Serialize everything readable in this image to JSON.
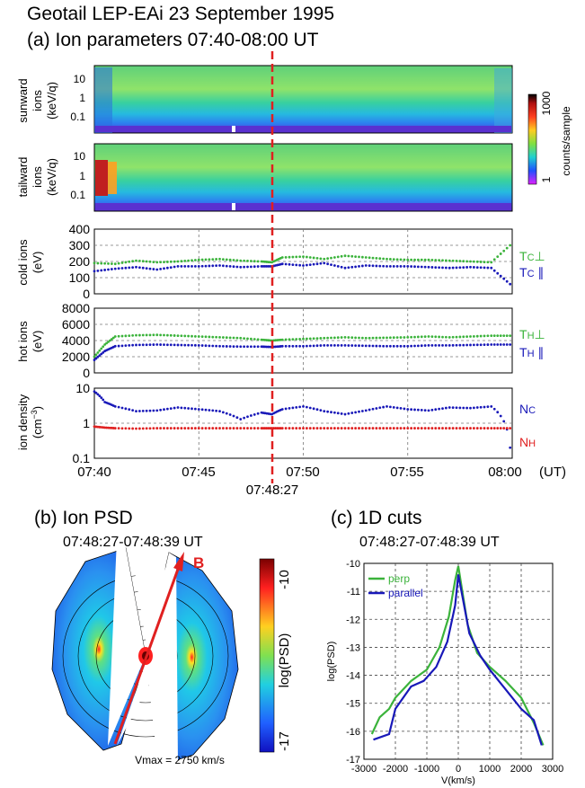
{
  "header": {
    "title": "Geotail LEP-EAi   23 September 1995",
    "panel_a_title": "(a) Ion parameters  07:40-08:00 UT"
  },
  "panel_a": {
    "spec_sun_label": [
      "sunward",
      "ions",
      "(keV/q)"
    ],
    "spec_tail_label": [
      "tailward",
      "ions",
      "(keV/q)"
    ],
    "colorbar_label": "counts/sample",
    "colorbar_ticks": [
      "1000",
      "1"
    ],
    "energy_ticks": [
      "10",
      "1",
      "0.1"
    ],
    "event_time": "07:48:27",
    "time_ticks": [
      "07:40",
      "07:45",
      "07:50",
      "07:55",
      "08:00"
    ],
    "time_unit": "(UT)"
  },
  "colors": {
    "perp": "#3bb33b",
    "parallel": "#1818b8",
    "nh": "#e02020",
    "event_line": "#e02020"
  },
  "panel_b": {
    "title": "(b) Ion PSD",
    "time": "07:48:27-07:48:39 UT",
    "b_label": "B",
    "colorbar_label": "log(PSD)",
    "colorbar_ticks": [
      "-10",
      "-17"
    ],
    "vmax": "Vmax = 2750 km/s"
  },
  "panel_c": {
    "title": "(c) 1D cuts",
    "time": "07:48:27-07:48:39 UT"
  },
  "chart_data": [
    {
      "type": "scatter",
      "id": "cold",
      "ylabel": "cold ions (eV)",
      "xlim": [
        0,
        20
      ],
      "ylim": [
        0,
        400
      ],
      "yticks": [
        0,
        100,
        200,
        300,
        400
      ],
      "series": [
        {
          "name": "TC⊥",
          "x": [
            0,
            1,
            2,
            3,
            4,
            5,
            6,
            7,
            8,
            8.5,
            9,
            10,
            11,
            12,
            13,
            14,
            15,
            16,
            17,
            18,
            19,
            19.9
          ],
          "values": [
            190,
            185,
            205,
            195,
            200,
            210,
            215,
            205,
            200,
            195,
            225,
            230,
            215,
            235,
            225,
            215,
            210,
            210,
            205,
            200,
            195,
            300
          ]
        },
        {
          "name": "TC ∥",
          "x": [
            0,
            1,
            2,
            3,
            4,
            5,
            6,
            7,
            8,
            8.5,
            9,
            10,
            11,
            12,
            13,
            14,
            15,
            16,
            17,
            18,
            19,
            19.9
          ],
          "values": [
            140,
            155,
            165,
            150,
            170,
            170,
            175,
            165,
            170,
            170,
            185,
            175,
            190,
            160,
            175,
            170,
            170,
            165,
            160,
            165,
            160,
            60
          ]
        }
      ]
    },
    {
      "type": "scatter",
      "id": "hot",
      "ylabel": "hot ions (eV)",
      "xlim": [
        0,
        20
      ],
      "ylim": [
        0,
        8000
      ],
      "yticks": [
        0,
        2000,
        4000,
        6000,
        8000
      ],
      "series": [
        {
          "name": "TH⊥",
          "x": [
            0,
            0.5,
            1,
            2,
            3,
            4,
            5,
            6,
            7,
            8,
            8.5,
            9,
            10,
            11,
            12,
            13,
            14,
            15,
            16,
            17,
            18,
            19,
            19.9
          ],
          "values": [
            2000,
            3500,
            4500,
            4650,
            4700,
            4600,
            4500,
            4400,
            4300,
            4100,
            4000,
            4100,
            4200,
            4300,
            4400,
            4300,
            4350,
            4400,
            4500,
            4400,
            4500,
            4600,
            4600
          ]
        },
        {
          "name": "TH ∥",
          "x": [
            0,
            0.5,
            1,
            2,
            3,
            4,
            5,
            6,
            7,
            8,
            8.5,
            9,
            10,
            11,
            12,
            13,
            14,
            15,
            16,
            17,
            18,
            19,
            19.9
          ],
          "values": [
            1600,
            2700,
            3300,
            3450,
            3500,
            3450,
            3400,
            3300,
            3250,
            3250,
            3200,
            3300,
            3300,
            3400,
            3400,
            3350,
            3300,
            3300,
            3400,
            3400,
            3450,
            3500,
            3500
          ]
        }
      ]
    },
    {
      "type": "scatter",
      "id": "dens",
      "ylabel": "ion density (cm−3)",
      "yscale": "log",
      "xlim": [
        0,
        20
      ],
      "ylim": [
        0.1,
        10
      ],
      "yticks": [
        "0.1",
        "1",
        "10"
      ],
      "series": [
        {
          "name": "NC",
          "x": [
            0,
            0.5,
            1,
            2,
            3,
            4,
            5,
            6,
            7,
            8,
            8.5,
            9,
            10,
            11,
            12,
            13,
            14,
            15,
            16,
            17,
            18,
            19,
            19.9
          ],
          "values": [
            8,
            4,
            3,
            2.2,
            2.3,
            2.8,
            2.5,
            2.2,
            1.3,
            2.0,
            1.8,
            2.5,
            3,
            2.2,
            1.8,
            2.3,
            3,
            2.5,
            2.3,
            2.8,
            2.7,
            3,
            0.2
          ]
        },
        {
          "name": "NH",
          "x": [
            0,
            0.5,
            1,
            2,
            3,
            4,
            5,
            6,
            7,
            8,
            8.5,
            9,
            10,
            11,
            12,
            13,
            14,
            15,
            16,
            17,
            18,
            19,
            19.9
          ],
          "values": [
            0.8,
            0.75,
            0.72,
            0.7,
            0.72,
            0.72,
            0.72,
            0.72,
            0.72,
            0.72,
            0.72,
            0.72,
            0.72,
            0.72,
            0.72,
            0.72,
            0.72,
            0.72,
            0.72,
            0.72,
            0.72,
            0.72,
            0.72
          ]
        }
      ]
    },
    {
      "type": "line",
      "id": "cuts",
      "xlabel": "V(km/s)",
      "ylabel": "log(PSD)",
      "xlim": [
        -3000,
        3000
      ],
      "ylim": [
        -17,
        -10
      ],
      "xticks": [
        -3000,
        -2000,
        -1000,
        0,
        1000,
        2000,
        3000
      ],
      "yticks": [
        -10,
        -11,
        -12,
        -13,
        -14,
        -15,
        -16,
        -17
      ],
      "series": [
        {
          "name": "perp",
          "x": [
            -2750,
            -2500,
            -2200,
            -2000,
            -1500,
            -1000,
            -600,
            -300,
            -100,
            0,
            100,
            300,
            600,
            1000,
            1500,
            2000,
            2400,
            2700
          ],
          "values": [
            -16.1,
            -15.5,
            -15.2,
            -14.8,
            -14.2,
            -13.8,
            -13.0,
            -11.9,
            -10.6,
            -10.1,
            -10.8,
            -12.2,
            -13.2,
            -13.7,
            -14.2,
            -14.8,
            -15.7,
            -16.5
          ]
        },
        {
          "name": "parallel",
          "x": [
            -2700,
            -2200,
            -2000,
            -1500,
            -1100,
            -700,
            -350,
            -100,
            0,
            150,
            350,
            700,
            1000,
            1500,
            2000,
            2400,
            2650
          ],
          "values": [
            -16.3,
            -16.1,
            -15.2,
            -14.4,
            -14.2,
            -13.7,
            -12.8,
            -11.5,
            -10.4,
            -11.3,
            -12.5,
            -13.3,
            -13.8,
            -14.5,
            -15.2,
            -15.6,
            -16.5
          ]
        }
      ]
    }
  ]
}
